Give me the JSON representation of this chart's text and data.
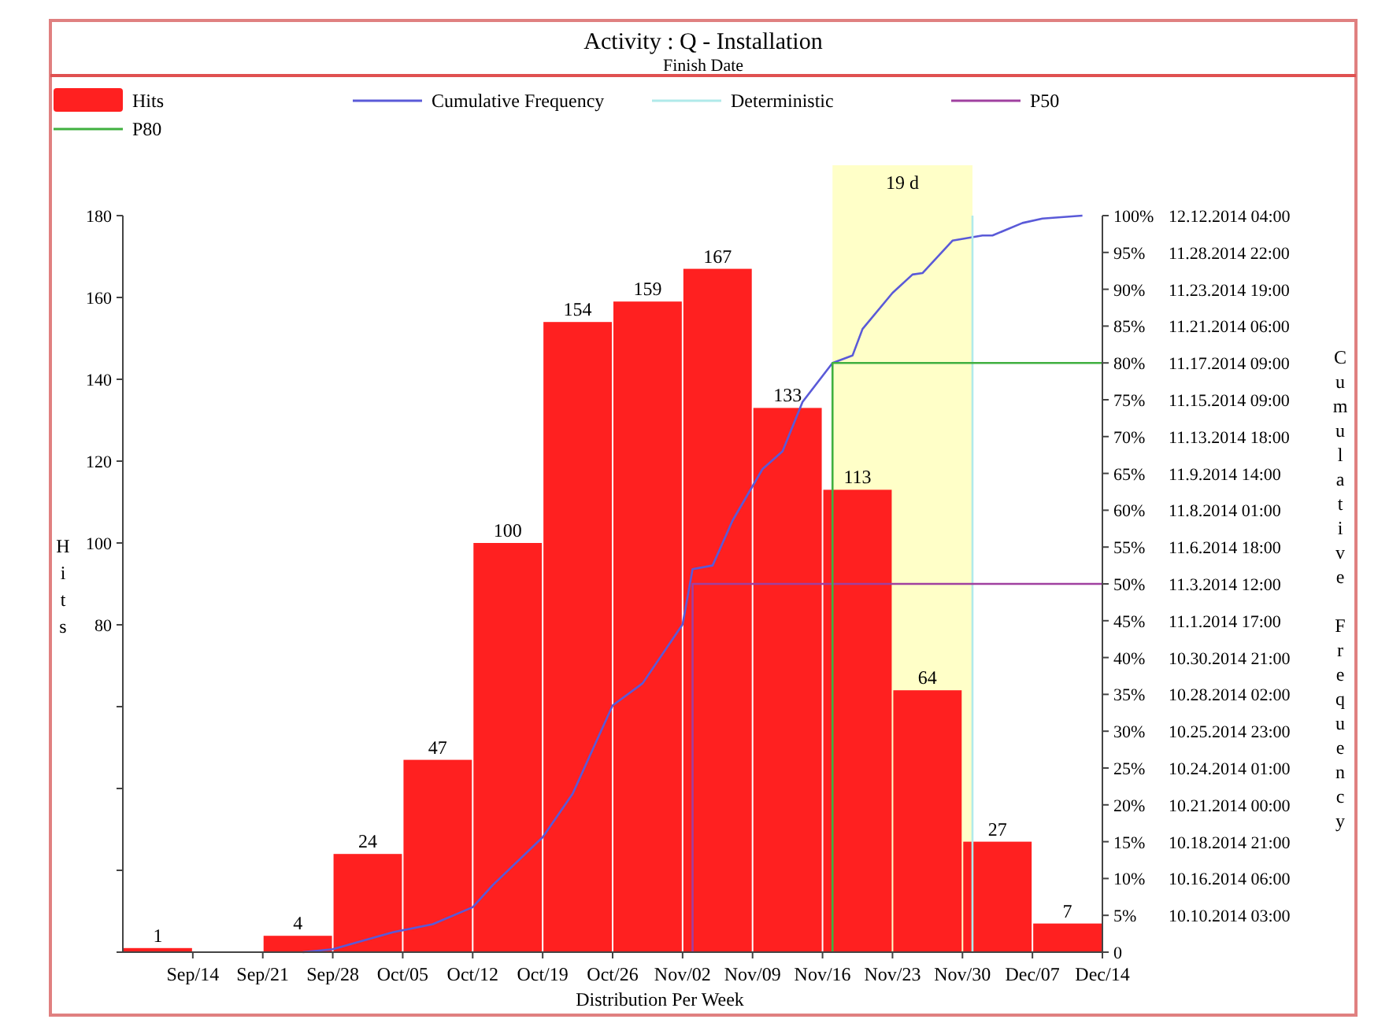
{
  "chart_data": {
    "type": "histogram",
    "title": "Activity : Q - Installation",
    "subtitle": "Finish Date",
    "xlabel": "Distribution Per Week",
    "ylabel": "Hits",
    "y2label": "Cumulative Frequency",
    "bins": [
      "2014-09-07",
      "2014-09-14",
      "2014-09-21",
      "2014-09-28",
      "2014-10-05",
      "2014-10-12",
      "2014-10-19",
      "2014-10-26",
      "2014-11-02",
      "2014-11-09",
      "2014-11-16",
      "2014-11-23",
      "2014-11-30",
      "2014-12-07",
      "2014-12-14"
    ],
    "xlim": [
      "2014-09-07",
      "2014-12-14"
    ],
    "xticks": [
      {
        "value": "2014-09-14",
        "label": "Sep/14"
      },
      {
        "value": "2014-09-21",
        "label": "Sep/21"
      },
      {
        "value": "2014-09-28",
        "label": "Sep/28"
      },
      {
        "value": "2014-10-05",
        "label": "Oct/05"
      },
      {
        "value": "2014-10-12",
        "label": "Oct/12"
      },
      {
        "value": "2014-10-19",
        "label": "Oct/19"
      },
      {
        "value": "2014-10-26",
        "label": "Oct/26"
      },
      {
        "value": "2014-11-02",
        "label": "Nov/02"
      },
      {
        "value": "2014-11-09",
        "label": "Nov/09"
      },
      {
        "value": "2014-11-16",
        "label": "Nov/16"
      },
      {
        "value": "2014-11-23",
        "label": "Nov/23"
      },
      {
        "value": "2014-11-30",
        "label": "Nov/30"
      },
      {
        "value": "2014-12-07",
        "label": "Dec/07"
      },
      {
        "value": "2014-12-14",
        "label": "Dec/14"
      }
    ],
    "ylim": [
      0,
      180
    ],
    "yticks": [
      {
        "value": 0,
        "label": null
      },
      {
        "value": 20,
        "label": null
      },
      {
        "value": 40,
        "label": null
      },
      {
        "value": 60,
        "label": null
      },
      80,
      100,
      120,
      140,
      160,
      180
    ],
    "y2lim": [
      0,
      100
    ],
    "y2ticks": [
      0,
      {
        "value": 5,
        "label": "5%"
      },
      {
        "value": 10,
        "label": "10%"
      },
      {
        "value": 15,
        "label": "15%"
      },
      {
        "value": 20,
        "label": "20%"
      },
      {
        "value": 25,
        "label": "25%"
      },
      {
        "value": 30,
        "label": "30%"
      },
      {
        "value": 35,
        "label": "35%"
      },
      {
        "value": 40,
        "label": "40%"
      },
      {
        "value": 45,
        "label": "45%"
      },
      {
        "value": 50,
        "label": "50%"
      },
      {
        "value": 55,
        "label": "55%"
      },
      {
        "value": 60,
        "label": "60%"
      },
      {
        "value": 65,
        "label": "65%"
      },
      {
        "value": 70,
        "label": "70%"
      },
      {
        "value": 75,
        "label": "75%"
      },
      {
        "value": 80,
        "label": "80%"
      },
      {
        "value": 85,
        "label": "85%"
      },
      {
        "value": 90,
        "label": "90%"
      },
      {
        "value": 95,
        "label": "95%"
      },
      {
        "value": 100,
        "label": "100%"
      }
    ],
    "annotations": [
      "10.10.2014 03:00",
      "10.16.2014 06:00",
      "10.18.2014 21:00",
      "10.21.2014 00:00",
      "10.24.2014 01:00",
      "10.25.2014 23:00",
      "10.28.2014 02:00",
      "10.30.2014 21:00",
      "11.1.2014 17:00",
      "11.3.2014 12:00",
      "11.6.2014 18:00",
      "11.8.2014 01:00",
      "11.9.2014 14:00",
      "11.13.2014 18:00",
      "11.15.2014 09:00",
      "11.17.2014 09:00",
      "11.21.2014 06:00",
      "11.23.2014 19:00",
      "11.28.2014 22:00",
      "12.12.2014 04:00"
    ],
    "bands": [
      {
        "axis": "x",
        "from": "2014-11-17",
        "to": "2014-12-01",
        "label": "19 d",
        "color": "#ffffc8"
      }
    ],
    "legend": "top",
    "series": [
      {
        "name": "Hits",
        "color": "#ff2020",
        "values": [
          1,
          0,
          4,
          24,
          47,
          100,
          154,
          159,
          167,
          133,
          113,
          64,
          27,
          7
        ],
        "value_labels": [
          "1",
          null,
          "4",
          "24",
          "47",
          "100",
          "154",
          "159",
          "167",
          "133",
          "113",
          "64",
          "27",
          "7"
        ]
      },
      {
        "name": "Cumulative Frequency",
        "type": "line",
        "axis": "y2",
        "color": "#5a5ad8",
        "x": [
          "2014-09-25",
          "2014-09-28",
          "2014-10-04",
          "2014-10-08",
          "2014-10-12",
          "2014-10-14",
          "2014-10-19",
          "2014-10-22",
          "2014-10-26",
          "2014-10-29",
          "2014-11-02",
          "2014-11-03",
          "2014-11-05",
          "2014-11-07",
          "2014-11-10",
          "2014-11-12",
          "2014-11-14",
          "2014-11-17",
          "2014-11-19",
          "2014-11-20",
          "2014-11-23",
          "2014-11-25",
          "2014-11-26",
          "2014-11-29",
          "2014-12-02",
          "2014-12-03",
          "2014-12-06",
          "2014-12-08",
          "2014-12-12"
        ],
        "values": [
          0,
          0.4,
          2.7,
          3.8,
          6.1,
          9.1,
          15.6,
          21.5,
          33.5,
          36.5,
          44.5,
          52,
          52.5,
          58.6,
          65.6,
          68,
          74.7,
          80,
          81,
          84.6,
          89.5,
          92,
          92.2,
          96.6,
          97.3,
          97.3,
          99,
          99.6,
          100
        ]
      },
      {
        "name": "Deterministic",
        "type": "line",
        "axis": "y2",
        "color": "#b0eaea",
        "x": [
          "2014-12-01",
          "2014-12-01"
        ],
        "values": [
          0,
          100
        ]
      },
      {
        "name": "P50",
        "type": "line",
        "axis": "y2",
        "color": "#a040a0",
        "x": [
          "2014-11-03",
          "2014-11-03",
          "2014-12-14"
        ],
        "values": [
          0,
          50,
          50
        ]
      },
      {
        "name": "P80",
        "type": "line",
        "axis": "y2",
        "color": "#40b040",
        "x": [
          "2014-11-17",
          "2014-11-17",
          "2014-12-14"
        ],
        "values": [
          0,
          80,
          80
        ]
      }
    ]
  }
}
